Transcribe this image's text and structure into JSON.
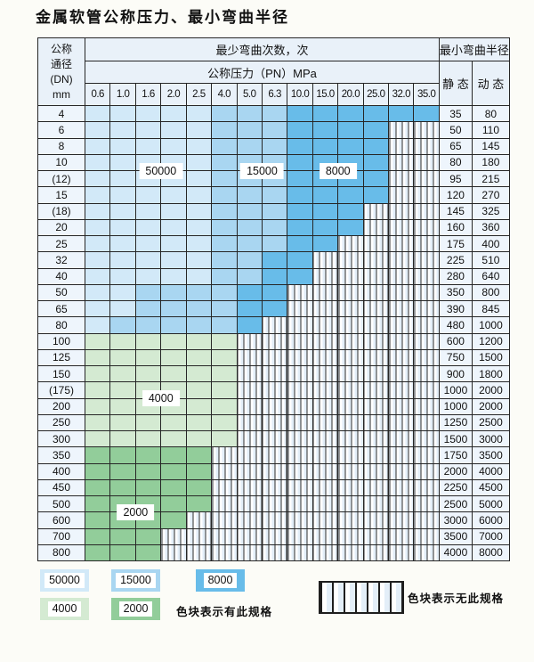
{
  "title": "金属软管公称压力、最小弯曲半径",
  "table": {
    "dn_header_lines": [
      "公称",
      "通径",
      "(DN)",
      "mm"
    ],
    "bend_cycles_header": "最少弯曲次数，次",
    "pressure_header": "公称压力（PN）MPa",
    "radius_header": "最小弯曲半径",
    "static_header": "静 态",
    "dynamic_header": "动 态",
    "pressure_columns": [
      "0.6",
      "1.0",
      "1.6",
      "2.0",
      "2.5",
      "4.0",
      "5.0",
      "6.3",
      "10.0",
      "15.0",
      "20.0",
      "25.0",
      "32.0",
      "35.0"
    ],
    "cell_code_legend": {
      "5": "50000次",
      "1": "15000次",
      "8": "8000次",
      "4": "4000次",
      "2": "2000次",
      "x": "无此规格"
    },
    "rows": [
      {
        "dn": "4",
        "cells": "55555111888888",
        "static": "35",
        "dynamic": "80"
      },
      {
        "dn": "6",
        "cells": "555551118888xx",
        "static": "50",
        "dynamic": "110"
      },
      {
        "dn": "8",
        "cells": "555551118888xx",
        "static": "65",
        "dynamic": "145"
      },
      {
        "dn": "10",
        "cells": "555551118888xx",
        "static": "80",
        "dynamic": "180"
      },
      {
        "dn": "(12)",
        "cells": "555551118888xx",
        "static": "95",
        "dynamic": "215"
      },
      {
        "dn": "15",
        "cells": "555551118888xx",
        "static": "120",
        "dynamic": "270"
      },
      {
        "dn": "(18)",
        "cells": "55555111888xxx",
        "static": "145",
        "dynamic": "325"
      },
      {
        "dn": "20",
        "cells": "55555111888xxx",
        "static": "160",
        "dynamic": "360"
      },
      {
        "dn": "25",
        "cells": "5555511188xxxx",
        "static": "175",
        "dynamic": "400"
      },
      {
        "dn": "32",
        "cells": "555551188xxxxx",
        "static": "225",
        "dynamic": "510"
      },
      {
        "dn": "40",
        "cells": "555551188xxxxx",
        "static": "280",
        "dynamic": "640"
      },
      {
        "dn": "50",
        "cells": "55111188xxxxxx",
        "static": "350",
        "dynamic": "800"
      },
      {
        "dn": "65",
        "cells": "55111188xxxxxx",
        "static": "390",
        "dynamic": "845"
      },
      {
        "dn": "80",
        "cells": "5111118xxxxxxx",
        "static": "480",
        "dynamic": "1000"
      },
      {
        "dn": "100",
        "cells": "444444xxxxxxxx",
        "static": "600",
        "dynamic": "1200"
      },
      {
        "dn": "125",
        "cells": "444444xxxxxxxx",
        "static": "750",
        "dynamic": "1500"
      },
      {
        "dn": "150",
        "cells": "444444xxxxxxxx",
        "static": "900",
        "dynamic": "1800"
      },
      {
        "dn": "(175)",
        "cells": "444444xxxxxxxx",
        "static": "1000",
        "dynamic": "2000"
      },
      {
        "dn": "200",
        "cells": "444444xxxxxxxx",
        "static": "1000",
        "dynamic": "2000"
      },
      {
        "dn": "250",
        "cells": "444444xxxxxxxx",
        "static": "1250",
        "dynamic": "2500"
      },
      {
        "dn": "300",
        "cells": "444444xxxxxxxx",
        "static": "1500",
        "dynamic": "3000"
      },
      {
        "dn": "350",
        "cells": "22222xxxxxxxxx",
        "static": "1750",
        "dynamic": "3500"
      },
      {
        "dn": "400",
        "cells": "22222xxxxxxxxx",
        "static": "2000",
        "dynamic": "4000"
      },
      {
        "dn": "450",
        "cells": "22222xxxxxxxxx",
        "static": "2250",
        "dynamic": "4500"
      },
      {
        "dn": "500",
        "cells": "22222xxxxxxxxx",
        "static": "2500",
        "dynamic": "5000"
      },
      {
        "dn": "600",
        "cells": "2222xxxxxxxxxx",
        "static": "3000",
        "dynamic": "6000"
      },
      {
        "dn": "700",
        "cells": "222xxxxxxxxxxx",
        "static": "3500",
        "dynamic": "7000"
      },
      {
        "dn": "800",
        "cells": "222xxxxxxxxxxx",
        "static": "4000",
        "dynamic": "8000"
      }
    ]
  },
  "zone_labels": [
    {
      "text": "50000",
      "col_start": 2,
      "col_end": 3,
      "row_above": 3
    },
    {
      "text": "15000",
      "col_start": 6,
      "col_end": 7,
      "row_above": 3
    },
    {
      "text": "8000",
      "col_start": 9,
      "col_end": 10,
      "row_above": 3
    },
    {
      "text": "4000",
      "col_start": 2,
      "col_end": 3,
      "row_above": 17
    },
    {
      "text": "2000",
      "col_start": 1,
      "col_end": 2,
      "row_above": 24
    }
  ],
  "legend": {
    "items": [
      {
        "label": "50000",
        "color_key": "blue_50000"
      },
      {
        "label": "15000",
        "color_key": "blue_15000"
      },
      {
        "label": "8000",
        "color_key": "blue_8000"
      },
      {
        "label": "4000",
        "color_key": "green_4000"
      },
      {
        "label": "2000",
        "color_key": "green_2000"
      }
    ],
    "has_spec_text": "色块表示有此规格",
    "no_spec_text": "色块表示无此规格"
  },
  "colors": {
    "blue_50000": "#d2e9f8",
    "blue_15000": "#a9d6f1",
    "blue_8000": "#68bce9",
    "green_4000": "#d4ead2",
    "green_2000": "#92cd9a",
    "header_bg": "#e9f1f9",
    "grid": "#262626"
  }
}
